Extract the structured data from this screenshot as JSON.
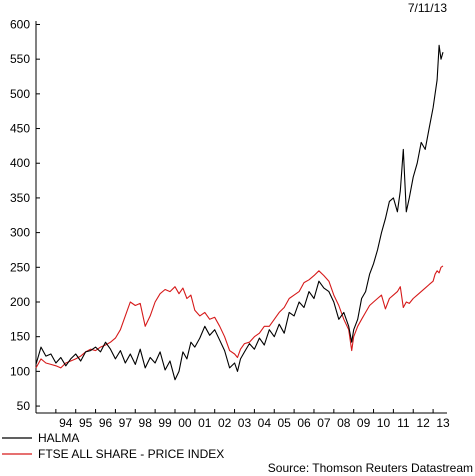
{
  "date_label": "7/11/13",
  "source_label": "Source: Thomson Reuters Datastream",
  "chart_data": {
    "type": "line",
    "title": "",
    "xlabel": "",
    "ylabel": "",
    "ylim": [
      40,
      605
    ],
    "xlim": [
      1993.0,
      2013.7
    ],
    "yticks": [
      50,
      100,
      150,
      200,
      250,
      300,
      350,
      400,
      450,
      500,
      550,
      600
    ],
    "x_tick_labels": [
      "94",
      "95",
      "96",
      "97",
      "98",
      "99",
      "00",
      "01",
      "02",
      "03",
      "04",
      "05",
      "06",
      "07",
      "08",
      "09",
      "10",
      "11",
      "12",
      "13"
    ],
    "x_tick_positions": [
      1994.5,
      1995.5,
      1996.5,
      1997.5,
      1998.5,
      1999.5,
      2000.5,
      2001.5,
      2002.5,
      2003.5,
      2004.5,
      2005.5,
      2006.5,
      2007.5,
      2008.5,
      2009.5,
      2010.5,
      2011.5,
      2012.5,
      2013.5
    ],
    "grid": false,
    "legend_position": "bottom-left",
    "series": [
      {
        "name": "HALMA",
        "color": "#000000",
        "x": [
          1993.0,
          1993.25,
          1993.5,
          1993.75,
          1994.0,
          1994.25,
          1994.5,
          1994.75,
          1995.0,
          1995.25,
          1995.5,
          1995.75,
          1996.0,
          1996.25,
          1996.5,
          1996.75,
          1997.0,
          1997.25,
          1997.5,
          1997.75,
          1998.0,
          1998.25,
          1998.5,
          1998.75,
          1999.0,
          1999.25,
          1999.5,
          1999.75,
          2000.0,
          2000.2,
          2000.4,
          2000.6,
          2000.8,
          2001.0,
          2001.25,
          2001.5,
          2001.75,
          2002.0,
          2002.25,
          2002.5,
          2002.75,
          2003.0,
          2003.15,
          2003.3,
          2003.5,
          2003.75,
          2004.0,
          2004.25,
          2004.5,
          2004.75,
          2005.0,
          2005.25,
          2005.5,
          2005.75,
          2006.0,
          2006.25,
          2006.5,
          2006.75,
          2007.0,
          2007.25,
          2007.5,
          2007.75,
          2008.0,
          2008.25,
          2008.5,
          2008.75,
          2008.9,
          2009.0,
          2009.2,
          2009.4,
          2009.6,
          2009.8,
          2010.0,
          2010.2,
          2010.4,
          2010.6,
          2010.8,
          2011.0,
          2011.2,
          2011.35,
          2011.5,
          2011.65,
          2011.8,
          2012.0,
          2012.2,
          2012.4,
          2012.6,
          2012.8,
          2013.0,
          2013.1,
          2013.2,
          2013.3,
          2013.4,
          2013.5
        ],
        "values": [
          110,
          135,
          122,
          125,
          112,
          120,
          108,
          118,
          125,
          115,
          128,
          130,
          135,
          128,
          142,
          132,
          118,
          130,
          112,
          125,
          110,
          132,
          105,
          120,
          112,
          128,
          102,
          115,
          88,
          100,
          128,
          118,
          142,
          135,
          148,
          165,
          152,
          160,
          145,
          130,
          105,
          112,
          100,
          118,
          128,
          140,
          132,
          148,
          138,
          160,
          150,
          168,
          155,
          185,
          180,
          200,
          192,
          215,
          205,
          230,
          220,
          215,
          200,
          175,
          185,
          165,
          142,
          160,
          175,
          205,
          215,
          240,
          255,
          275,
          300,
          320,
          345,
          350,
          330,
          360,
          420,
          330,
          350,
          380,
          400,
          430,
          420,
          450,
          480,
          500,
          520,
          570,
          550,
          560
        ]
      },
      {
        "name": "FTSE ALL SHARE - PRICE INDEX",
        "color": "#d61a1a",
        "x": [
          1993.0,
          1993.25,
          1993.5,
          1993.75,
          1994.0,
          1994.25,
          1994.5,
          1994.75,
          1995.0,
          1995.25,
          1995.5,
          1995.75,
          1996.0,
          1996.25,
          1996.5,
          1996.75,
          1997.0,
          1997.25,
          1997.5,
          1997.75,
          1998.0,
          1998.25,
          1998.5,
          1998.75,
          1999.0,
          1999.25,
          1999.5,
          1999.75,
          2000.0,
          2000.2,
          2000.4,
          2000.6,
          2000.8,
          2001.0,
          2001.25,
          2001.5,
          2001.75,
          2002.0,
          2002.25,
          2002.5,
          2002.75,
          2003.0,
          2003.15,
          2003.3,
          2003.5,
          2003.75,
          2004.0,
          2004.25,
          2004.5,
          2004.75,
          2005.0,
          2005.25,
          2005.5,
          2005.75,
          2006.0,
          2006.25,
          2006.5,
          2006.75,
          2007.0,
          2007.25,
          2007.5,
          2007.75,
          2008.0,
          2008.25,
          2008.5,
          2008.75,
          2008.9,
          2009.0,
          2009.2,
          2009.4,
          2009.6,
          2009.8,
          2010.0,
          2010.2,
          2010.4,
          2010.6,
          2010.8,
          2011.0,
          2011.2,
          2011.35,
          2011.5,
          2011.65,
          2011.8,
          2012.0,
          2012.2,
          2012.4,
          2012.6,
          2012.8,
          2013.0,
          2013.1,
          2013.2,
          2013.3,
          2013.4,
          2013.5
        ],
        "values": [
          105,
          118,
          112,
          110,
          108,
          105,
          112,
          115,
          118,
          122,
          128,
          132,
          130,
          135,
          138,
          142,
          148,
          160,
          180,
          200,
          195,
          198,
          165,
          180,
          200,
          212,
          218,
          215,
          222,
          212,
          220,
          205,
          210,
          188,
          180,
          185,
          175,
          178,
          165,
          150,
          130,
          125,
          120,
          132,
          140,
          142,
          150,
          155,
          165,
          165,
          175,
          185,
          192,
          205,
          210,
          215,
          228,
          232,
          238,
          245,
          238,
          230,
          210,
          195,
          175,
          160,
          130,
          150,
          165,
          175,
          185,
          195,
          200,
          205,
          210,
          190,
          205,
          210,
          215,
          222,
          192,
          200,
          198,
          205,
          210,
          215,
          220,
          225,
          230,
          240,
          245,
          242,
          250,
          252
        ]
      }
    ]
  }
}
